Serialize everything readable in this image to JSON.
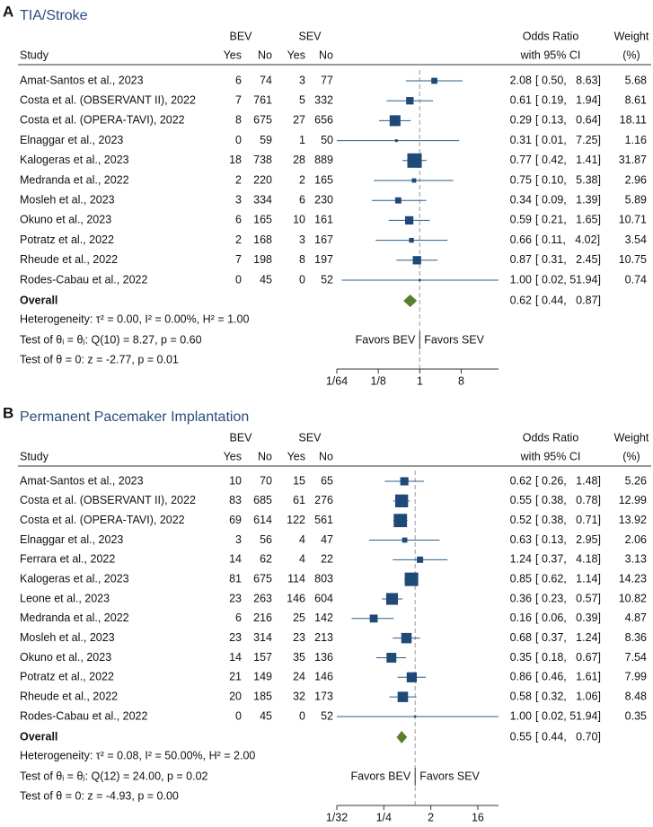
{
  "chart_data": [
    {
      "type": "forest",
      "panel": "A",
      "title": "TIA/Stroke",
      "headers": {
        "study": "Study",
        "groups": [
          "BEV",
          "SEV"
        ],
        "sub": [
          "Yes",
          "No",
          "Yes",
          "No"
        ],
        "effect": [
          "Odds Ratio",
          "with 95% CI"
        ],
        "weight": [
          "Weight",
          "(%)"
        ]
      },
      "studies": [
        {
          "name": "Amat-Santos et al., 2023",
          "counts": [
            6,
            74,
            3,
            77
          ],
          "or": 2.08,
          "or_label": "2.08",
          "ci": [
            0.5,
            8.63
          ],
          "ci_label": "[ 0.50,   8.63]",
          "weight": 5.68
        },
        {
          "name": "Costa et al. (OBSERVANT II), 2022",
          "counts": [
            7,
            761,
            5,
            332
          ],
          "or": 0.61,
          "or_label": "0.61",
          "ci": [
            0.19,
            1.94
          ],
          "ci_label": "[ 0.19,   1.94]",
          "weight": 8.61
        },
        {
          "name": "Costa et al. (OPERA-TAVI), 2022",
          "counts": [
            8,
            675,
            27,
            656
          ],
          "or": 0.29,
          "or_label": "0.29",
          "ci": [
            0.13,
            0.64
          ],
          "ci_label": "[ 0.13,   0.64]",
          "weight": 18.11
        },
        {
          "name": "Elnaggar et al., 2023",
          "counts": [
            0,
            59,
            1,
            50
          ],
          "or": 0.31,
          "or_label": "0.31",
          "ci": [
            0.01,
            7.25
          ],
          "ci_label": "[ 0.01,   7.25]",
          "weight": 1.16
        },
        {
          "name": "Kalogeras et al., 2023",
          "counts": [
            18,
            738,
            28,
            889
          ],
          "or": 0.77,
          "or_label": "0.77",
          "ci": [
            0.42,
            1.41
          ],
          "ci_label": "[ 0.42,   1.41]",
          "weight": 31.87
        },
        {
          "name": "Medranda et al., 2022",
          "counts": [
            2,
            220,
            2,
            165
          ],
          "or": 0.75,
          "or_label": "0.75",
          "ci": [
            0.1,
            5.38
          ],
          "ci_label": "[ 0.10,   5.38]",
          "weight": 2.96
        },
        {
          "name": "Mosleh et al., 2023",
          "counts": [
            3,
            334,
            6,
            230
          ],
          "or": 0.34,
          "or_label": "0.34",
          "ci": [
            0.09,
            1.39
          ],
          "ci_label": "[ 0.09,   1.39]",
          "weight": 5.89
        },
        {
          "name": "Okuno et al., 2023",
          "counts": [
            6,
            165,
            10,
            161
          ],
          "or": 0.59,
          "or_label": "0.59",
          "ci": [
            0.21,
            1.65
          ],
          "ci_label": "[ 0.21,   1.65]",
          "weight": 10.71
        },
        {
          "name": "Potratz et al., 2022",
          "counts": [
            2,
            168,
            3,
            167
          ],
          "or": 0.66,
          "or_label": "0.66",
          "ci": [
            0.11,
            4.02
          ],
          "ci_label": "[ 0.11,   4.02]",
          "weight": 3.54
        },
        {
          "name": "Rheude et al., 2022",
          "counts": [
            7,
            198,
            8,
            197
          ],
          "or": 0.87,
          "or_label": "0.87",
          "ci": [
            0.31,
            2.45
          ],
          "ci_label": "[ 0.31,   2.45]",
          "weight": 10.75
        },
        {
          "name": "Rodes-Cabau et al., 2022",
          "counts": [
            0,
            45,
            0,
            52
          ],
          "or": 1.0,
          "or_label": "1.00",
          "ci": [
            0.02,
            51.94
          ],
          "ci_label": "[ 0.02, 51.94]",
          "weight": 0.74
        }
      ],
      "overall": {
        "name": "Overall",
        "or": 0.62,
        "or_label": "0.62",
        "ci": [
          0.44,
          0.87
        ],
        "ci_label": "[ 0.44,   0.87]"
      },
      "notes": [
        "Heterogeneity: τ² = 0.00, I² = 0.00%, H² = 1.00",
        "Test of θᵢ = θⱼ: Q(10) = 8.27, p = 0.60",
        "Test of θ = 0: z = -2.77, p = 0.01"
      ],
      "favors": [
        "Favors BEV",
        "Favors SEV"
      ],
      "log_x": true,
      "xlim": [
        0.015625,
        52
      ],
      "xticks": [
        {
          "value": 0.015625,
          "label": "1/64"
        },
        {
          "value": 0.125,
          "label": "1/8"
        },
        1,
        8
      ],
      "box_color": "#1f4a78",
      "diamond_color": "#5b7f2c"
    },
    {
      "type": "forest",
      "panel": "B",
      "title": "Permanent Pacemaker Implantation",
      "headers": {
        "study": "Study",
        "groups": [
          "BEV",
          "SEV"
        ],
        "sub": [
          "Yes",
          "No",
          "Yes",
          "No"
        ],
        "effect": [
          "Odds Ratio",
          "with 95% CI"
        ],
        "weight": [
          "Weight",
          "(%)"
        ]
      },
      "studies": [
        {
          "name": "Amat-Santos et al., 2023",
          "counts": [
            10,
            70,
            15,
            65
          ],
          "or": 0.62,
          "or_label": "0.62",
          "ci": [
            0.26,
            1.48
          ],
          "ci_label": "[ 0.26,   1.48]",
          "weight": 5.26
        },
        {
          "name": "Costa et al. (OBSERVANT II), 2022",
          "counts": [
            83,
            685,
            61,
            276
          ],
          "or": 0.55,
          "or_label": "0.55",
          "ci": [
            0.38,
            0.78
          ],
          "ci_label": "[ 0.38,   0.78]",
          "weight": 12.99
        },
        {
          "name": "Costa et al. (OPERA-TAVI), 2022",
          "counts": [
            69,
            614,
            122,
            561
          ],
          "or": 0.52,
          "or_label": "0.52",
          "ci": [
            0.38,
            0.71
          ],
          "ci_label": "[ 0.38,   0.71]",
          "weight": 13.92
        },
        {
          "name": "Elnaggar et al., 2023",
          "counts": [
            3,
            56,
            4,
            47
          ],
          "or": 0.63,
          "or_label": "0.63",
          "ci": [
            0.13,
            2.95
          ],
          "ci_label": "[ 0.13,   2.95]",
          "weight": 2.06
        },
        {
          "name": "Ferrara et al., 2022",
          "counts": [
            14,
            62,
            4,
            22
          ],
          "or": 1.24,
          "or_label": "1.24",
          "ci": [
            0.37,
            4.18
          ],
          "ci_label": "[ 0.37,   4.18]",
          "weight": 3.13
        },
        {
          "name": "Kalogeras et al., 2023",
          "counts": [
            81,
            675,
            114,
            803
          ],
          "or": 0.85,
          "or_label": "0.85",
          "ci": [
            0.62,
            1.14
          ],
          "ci_label": "[ 0.62,   1.14]",
          "weight": 14.23
        },
        {
          "name": "Leone et al., 2023",
          "counts": [
            23,
            263,
            146,
            604
          ],
          "or": 0.36,
          "or_label": "0.36",
          "ci": [
            0.23,
            0.57
          ],
          "ci_label": "[ 0.23,   0.57]",
          "weight": 10.82
        },
        {
          "name": "Medranda et al., 2022",
          "counts": [
            6,
            216,
            25,
            142
          ],
          "or": 0.16,
          "or_label": "0.16",
          "ci": [
            0.06,
            0.39
          ],
          "ci_label": "[ 0.06,   0.39]",
          "weight": 4.87
        },
        {
          "name": "Mosleh et al., 2023",
          "counts": [
            23,
            314,
            23,
            213
          ],
          "or": 0.68,
          "or_label": "0.68",
          "ci": [
            0.37,
            1.24
          ],
          "ci_label": "[ 0.37,   1.24]",
          "weight": 8.36
        },
        {
          "name": "Okuno et al., 2023",
          "counts": [
            14,
            157,
            35,
            136
          ],
          "or": 0.35,
          "or_label": "0.35",
          "ci": [
            0.18,
            0.67
          ],
          "ci_label": "[ 0.18,   0.67]",
          "weight": 7.54
        },
        {
          "name": "Potratz et al., 2022",
          "counts": [
            21,
            149,
            24,
            146
          ],
          "or": 0.86,
          "or_label": "0.86",
          "ci": [
            0.46,
            1.61
          ],
          "ci_label": "[ 0.46,   1.61]",
          "weight": 7.99
        },
        {
          "name": "Rheude et al., 2022",
          "counts": [
            20,
            185,
            32,
            173
          ],
          "or": 0.58,
          "or_label": "0.58",
          "ci": [
            0.32,
            1.06
          ],
          "ci_label": "[ 0.32,   1.06]",
          "weight": 8.48
        },
        {
          "name": "Rodes-Cabau et al., 2022",
          "counts": [
            0,
            45,
            0,
            52
          ],
          "or": 1.0,
          "or_label": "1.00",
          "ci": [
            0.02,
            51.94
          ],
          "ci_label": "[ 0.02, 51.94]",
          "weight": 0.35
        }
      ],
      "overall": {
        "name": "Overall",
        "or": 0.55,
        "or_label": "0.55",
        "ci": [
          0.44,
          0.7
        ],
        "ci_label": "[ 0.44,   0.70]"
      },
      "notes": [
        "Heterogeneity: τ² = 0.08, I² = 50.00%, H² = 2.00",
        "Test of θᵢ = θⱼ: Q(12) = 24.00, p = 0.02",
        "Test of θ = 0: z = -4.93, p = 0.00"
      ],
      "favors": [
        "Favors BEV",
        "Favors SEV"
      ],
      "log_x": true,
      "xlim": [
        0.03125,
        40
      ],
      "xticks": [
        {
          "value": 0.03125,
          "label": "1/32"
        },
        {
          "value": 0.25,
          "label": "1/4"
        },
        2,
        16
      ],
      "box_color": "#1f4a78",
      "diamond_color": "#5b7f2c"
    }
  ]
}
